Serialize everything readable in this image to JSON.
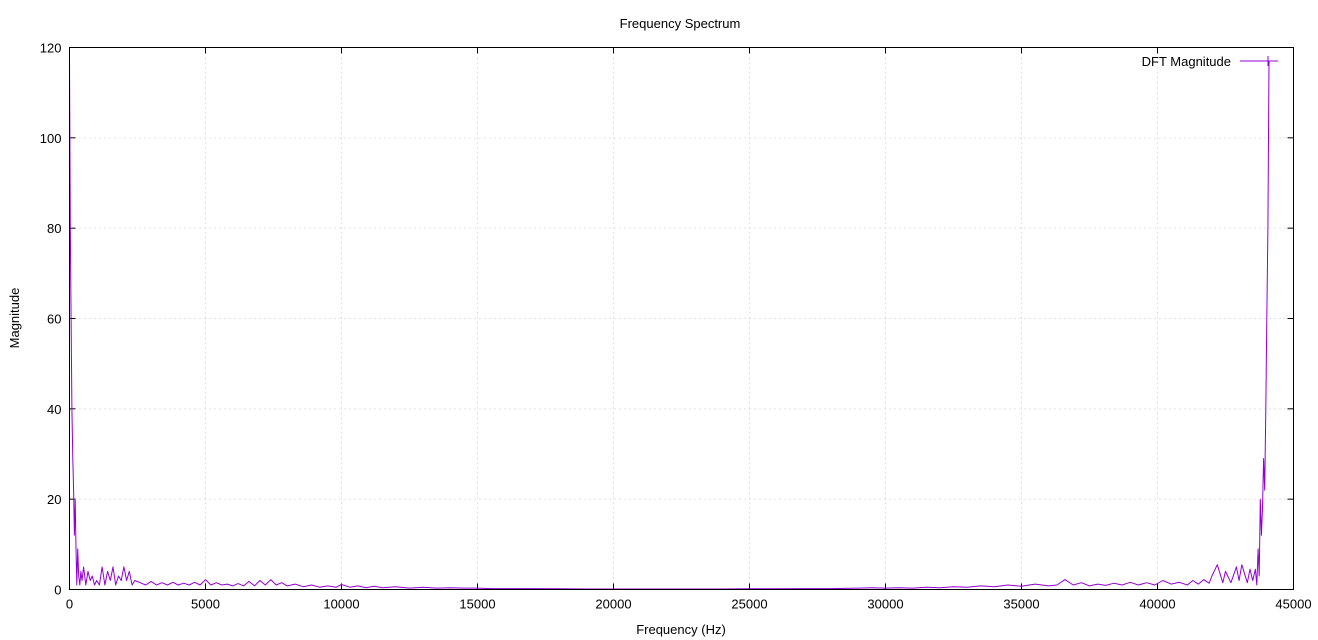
{
  "chart_data": {
    "type": "line",
    "title": "Frequency Spectrum",
    "xlabel": "Frequency (Hz)",
    "ylabel": "Magnitude",
    "xlim": [
      0,
      45000
    ],
    "ylim": [
      0,
      120
    ],
    "xticks": [
      0,
      5000,
      10000,
      15000,
      20000,
      25000,
      30000,
      35000,
      40000,
      45000
    ],
    "yticks": [
      0,
      20,
      40,
      60,
      80,
      100,
      120
    ],
    "grid": true,
    "legend_position": "top-right",
    "series": [
      {
        "name": "DFT Magnitude",
        "color": "#9400d3",
        "x": [
          0,
          30,
          60,
          90,
          120,
          150,
          180,
          210,
          240,
          270,
          300,
          340,
          380,
          420,
          460,
          520,
          600,
          680,
          760,
          840,
          920,
          1000,
          1100,
          1200,
          1300,
          1400,
          1500,
          1600,
          1700,
          1800,
          1900,
          2000,
          2100,
          2200,
          2300,
          2400,
          2600,
          2800,
          3000,
          3200,
          3400,
          3600,
          3800,
          4000,
          4200,
          4400,
          4600,
          4800,
          5000,
          5200,
          5400,
          5600,
          5800,
          6000,
          6200,
          6400,
          6600,
          6800,
          7000,
          7200,
          7400,
          7600,
          7800,
          8000,
          8300,
          8600,
          8900,
          9200,
          9500,
          9800,
          10000,
          10300,
          10600,
          10900,
          11200,
          11500,
          12000,
          12500,
          13000,
          13500,
          14000,
          14500,
          15000,
          15500,
          16000,
          17000,
          18000,
          19000,
          20000,
          21000,
          22000,
          23000,
          24000,
          25000,
          26000,
          27000,
          28000,
          29000,
          29500,
          30000,
          30500,
          31000,
          31500,
          32000,
          32500,
          33000,
          33500,
          34000,
          34500,
          35000,
          35500,
          36000,
          36300,
          36600,
          36900,
          37200,
          37500,
          37800,
          38100,
          38400,
          38700,
          39000,
          39300,
          39600,
          39900,
          40200,
          40500,
          40800,
          41100,
          41300,
          41500,
          41700,
          41900,
          42000,
          42200,
          42400,
          42500,
          42700,
          42900,
          43000,
          43100,
          43300,
          43400,
          43500,
          43600,
          43650,
          43700,
          43740,
          43780,
          43820,
          43860,
          43900,
          43940,
          43980,
          44020,
          44060,
          44100
        ],
        "values": [
          117,
          80,
          60,
          40,
          29,
          22,
          12,
          20,
          9,
          1,
          9,
          3,
          1,
          4,
          2,
          5,
          1,
          4,
          2,
          3,
          1,
          2,
          1,
          5,
          1,
          4,
          2,
          5,
          1,
          3,
          2,
          5,
          2,
          4,
          1,
          2,
          1.5,
          1,
          1.8,
          1,
          1.5,
          1,
          1.6,
          1,
          1.4,
          1,
          1.6,
          1,
          2.2,
          1,
          1.5,
          1,
          1.2,
          0.8,
          1.3,
          0.8,
          1.8,
          0.8,
          2,
          1,
          2.2,
          1,
          1.5,
          0.8,
          1.2,
          0.6,
          1,
          0.5,
          0.8,
          0.5,
          1.1,
          0.5,
          0.8,
          0.4,
          0.7,
          0.4,
          0.6,
          0.3,
          0.5,
          0.3,
          0.4,
          0.3,
          0.3,
          0.2,
          0.2,
          0.2,
          0.15,
          0.1,
          0.1,
          0.1,
          0.1,
          0.1,
          0.1,
          0.15,
          0.15,
          0.2,
          0.2,
          0.3,
          0.4,
          0.3,
          0.4,
          0.3,
          0.5,
          0.4,
          0.6,
          0.5,
          0.8,
          0.6,
          1,
          0.7,
          1.2,
          0.8,
          1,
          2.2,
          1,
          1.5,
          0.8,
          1.2,
          0.9,
          1.4,
          1,
          1.6,
          1,
          1.5,
          1,
          2,
          1.2,
          1.6,
          1,
          2,
          1.2,
          2.2,
          1.4,
          3,
          5.5,
          1.5,
          4,
          1.5,
          5,
          2,
          5.5,
          1.5,
          4.5,
          2,
          4.5,
          1,
          9,
          3,
          20,
          12,
          18,
          29,
          22,
          40,
          60,
          80,
          117
        ]
      }
    ]
  }
}
